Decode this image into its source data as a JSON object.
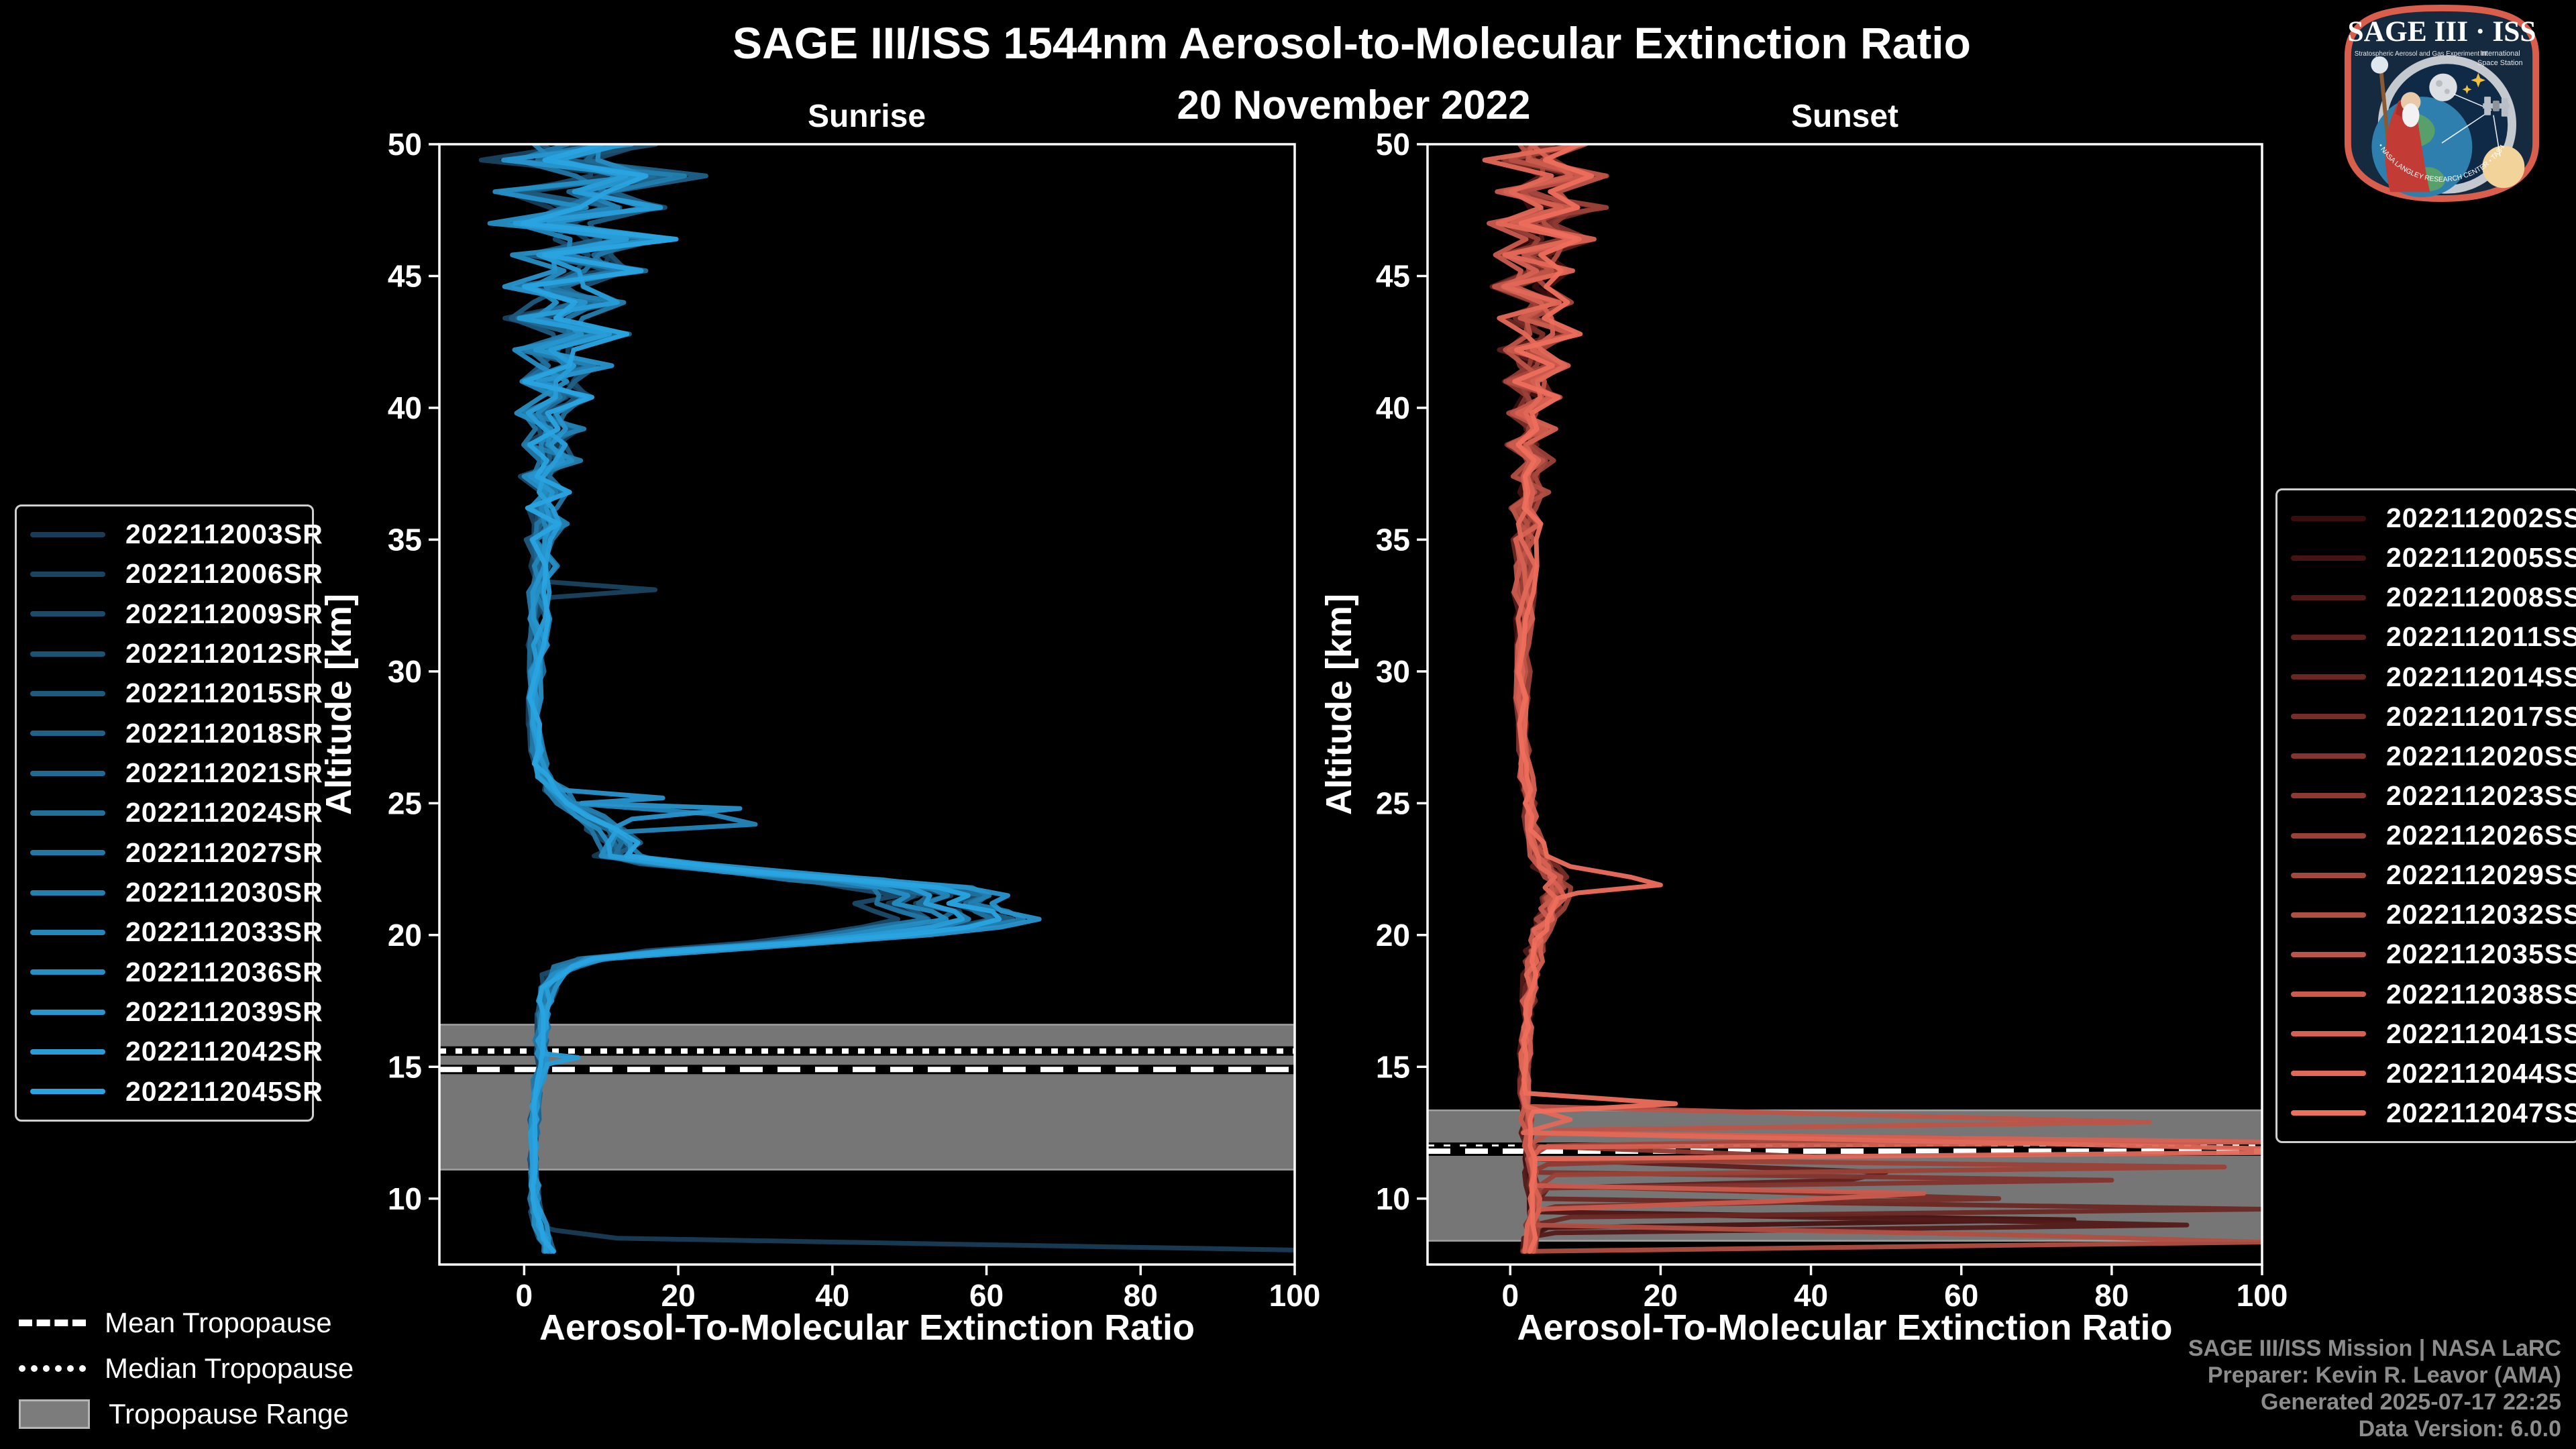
{
  "header": {
    "title": "SAGE III/ISS 1544nm Aerosol-to-Molecular Extinction Ratio",
    "subtitle": "20 November 2022"
  },
  "footer": {
    "color": "#8c8c8c",
    "lines": [
      "SAGE III/ISS Mission | NASA LaRC",
      "Preparer: Kevin R. Leavor (AMA)",
      "Generated 2025-07-17 22:25",
      "Data Version: 6.0.0"
    ]
  },
  "logo": {
    "title": "SAGE III · ISS",
    "program": "Stratospheric Aerosol and Gas Experiment III",
    "station_line1": "International",
    "station_line2": "Space Station",
    "arc_text": "BALL • NASA LANGLEY RESEARCH CENTER • TAS-I • ESA"
  },
  "tropopause_legend": {
    "items": [
      {
        "label": "Mean Tropopause",
        "style": "dashed"
      },
      {
        "label": "Median Tropopause",
        "style": "dotted"
      },
      {
        "label": "Tropopause Range",
        "style": "patch"
      }
    ]
  },
  "style": {
    "band_fill": "#767676",
    "band_edge": "#a0a0a0",
    "axis_color": "#ffffff",
    "tick_font_px": 46
  },
  "chart_data": [
    {
      "type": "line",
      "panel": "sunrise",
      "title": "Sunrise",
      "xlabel": "Aerosol-To-Molecular Extinction Ratio",
      "ylabel": "Altitude [km]",
      "xlim": [
        -11,
        100
      ],
      "ylim": [
        7.5,
        50
      ],
      "xticks": [
        0,
        20,
        40,
        60,
        80,
        100
      ],
      "yticks": [
        10,
        15,
        20,
        25,
        30,
        35,
        40,
        45,
        50
      ],
      "tropopause": {
        "mean_km": 14.9,
        "median_km": 15.6,
        "range_km": [
          11.1,
          16.6
        ]
      },
      "base_profile": [
        [
          50,
          10
        ],
        [
          49.4,
          2
        ],
        [
          48.8,
          16
        ],
        [
          48.2,
          4
        ],
        [
          47.6,
          12
        ],
        [
          47,
          3
        ],
        [
          46.4,
          14
        ],
        [
          45.8,
          5
        ],
        [
          45.2,
          10
        ],
        [
          44.6,
          2
        ],
        [
          44,
          8
        ],
        [
          43.4,
          3
        ],
        [
          42.8,
          9
        ],
        [
          42.2,
          2
        ],
        [
          41.6,
          7
        ],
        [
          41,
          3
        ],
        [
          40.4,
          6
        ],
        [
          39.8,
          2.5
        ],
        [
          39.2,
          5
        ],
        [
          38.6,
          3
        ],
        [
          38,
          4.5
        ],
        [
          37.4,
          2.5
        ],
        [
          36.8,
          4
        ],
        [
          36.2,
          2.5
        ],
        [
          35.6,
          3.5
        ],
        [
          35,
          2.5
        ],
        [
          34,
          3
        ],
        [
          33,
          2.5
        ],
        [
          32,
          2.2
        ],
        [
          31,
          2
        ],
        [
          30,
          1.8
        ],
        [
          29,
          1.6
        ],
        [
          28,
          1.5
        ],
        [
          27,
          1.6
        ],
        [
          26.5,
          2
        ],
        [
          26,
          3
        ],
        [
          25.5,
          4.5
        ],
        [
          25,
          6
        ],
        [
          24.5,
          9
        ],
        [
          24,
          12
        ],
        [
          23.5,
          14
        ],
        [
          23,
          13
        ],
        [
          22.7,
          20
        ],
        [
          22.4,
          32
        ],
        [
          22.1,
          45
        ],
        [
          21.8,
          55
        ],
        [
          21.5,
          60
        ],
        [
          21.2,
          57
        ],
        [
          20.9,
          61
        ],
        [
          20.6,
          63
        ],
        [
          20.3,
          58
        ],
        [
          20,
          50
        ],
        [
          19.7,
          38
        ],
        [
          19.4,
          22
        ],
        [
          19.1,
          10
        ],
        [
          18.8,
          6
        ],
        [
          18.5,
          4.5
        ],
        [
          18,
          3.5
        ],
        [
          17.5,
          3
        ],
        [
          17,
          2.8
        ],
        [
          16.5,
          2.6
        ],
        [
          16,
          2.4
        ],
        [
          15.5,
          2.2
        ],
        [
          15,
          2.5
        ],
        [
          14.5,
          2
        ],
        [
          14,
          1.8
        ],
        [
          13.5,
          1.6
        ],
        [
          13,
          1.5
        ],
        [
          12.5,
          1.4
        ],
        [
          12,
          1.4
        ],
        [
          11.5,
          1.3
        ],
        [
          11,
          1.3
        ],
        [
          10.5,
          1.4
        ],
        [
          10,
          1.5
        ],
        [
          9.5,
          1.8
        ],
        [
          9,
          2.2
        ],
        [
          8.5,
          2.8
        ],
        [
          8,
          3.5
        ]
      ],
      "noise_amp": [
        [
          50,
          8
        ],
        [
          46,
          7
        ],
        [
          43,
          5
        ],
        [
          40,
          3.5
        ],
        [
          37,
          2.5
        ],
        [
          34,
          1.8
        ],
        [
          31,
          1.2
        ],
        [
          28,
          0.8
        ],
        [
          25,
          1.2
        ],
        [
          23,
          2
        ],
        [
          21,
          2.2
        ],
        [
          19,
          1.5
        ],
        [
          17,
          0.8
        ],
        [
          14,
          0.5
        ],
        [
          11,
          0.5
        ],
        [
          8,
          0.8
        ]
      ],
      "series": [
        {
          "label": "2022112003SR",
          "color": "#193c56",
          "scale": 0.82,
          "seed": 1,
          "extras": [
            [
              8.8,
              4
            ],
            [
              8.5,
              12
            ],
            [
              8.25,
              60
            ],
            [
              8.05,
              100
            ]
          ]
        },
        {
          "label": "2022112006SR",
          "color": "#1a4360",
          "scale": 0.9,
          "seed": 2,
          "extras": [
            [
              33.4,
              3
            ],
            [
              33.1,
              17
            ],
            [
              32.8,
              3
            ]
          ]
        },
        {
          "label": "2022112009SR",
          "color": "#1b4b6a",
          "scale": 0.78,
          "seed": 3,
          "extras": []
        },
        {
          "label": "2022112012SR",
          "color": "#1c5274",
          "scale": 0.95,
          "seed": 4,
          "extras": []
        },
        {
          "label": "2022112015SR",
          "color": "#1e5a7e",
          "scale": 0.85,
          "seed": 5,
          "extras": []
        },
        {
          "label": "2022112018SR",
          "color": "#1f6188",
          "scale": 1.0,
          "seed": 6,
          "extras": []
        },
        {
          "label": "2022112021SR",
          "color": "#206992",
          "scale": 0.88,
          "seed": 7,
          "extras": []
        },
        {
          "label": "2022112024SR",
          "color": "#21709c",
          "scale": 0.97,
          "seed": 8,
          "extras": []
        },
        {
          "label": "2022112027SR",
          "color": "#2277a6",
          "scale": 0.8,
          "seed": 9,
          "extras": []
        },
        {
          "label": "2022112030SR",
          "color": "#237fb0",
          "scale": 1.02,
          "seed": 10,
          "extras": []
        },
        {
          "label": "2022112033SR",
          "color": "#2486ba",
          "scale": 0.92,
          "seed": 11,
          "extras": [
            [
              24.6,
              24
            ],
            [
              24.2,
              30
            ],
            [
              23.9,
              12
            ]
          ]
        },
        {
          "label": "2022112036SR",
          "color": "#258ec4",
          "scale": 0.86,
          "seed": 12,
          "extras": []
        },
        {
          "label": "2022112039SR",
          "color": "#2795ce",
          "scale": 1.05,
          "seed": 13,
          "extras": [
            [
              25.2,
              18
            ],
            [
              24.8,
              28
            ],
            [
              24.4,
              14
            ]
          ]
        },
        {
          "label": "2022112042SR",
          "color": "#289dd8",
          "scale": 0.9,
          "seed": 14,
          "extras": [
            [
              15.35,
              7
            ],
            [
              15.1,
              3
            ]
          ]
        },
        {
          "label": "2022112045SR",
          "color": "#29a4e2",
          "scale": 0.98,
          "seed": 15,
          "extras": []
        }
      ]
    },
    {
      "type": "line",
      "panel": "sunset",
      "title": "Sunset",
      "xlabel": "Aerosol-To-Molecular Extinction Ratio",
      "ylabel": "Altitude [km]",
      "xlim": [
        -11,
        100
      ],
      "ylim": [
        7.5,
        50
      ],
      "xticks": [
        0,
        20,
        40,
        60,
        80,
        100
      ],
      "yticks": [
        10,
        15,
        20,
        25,
        30,
        35,
        40,
        45,
        50
      ],
      "tropopause": {
        "mean_km": 11.8,
        "median_km": 11.95,
        "range_km": [
          8.4,
          13.35
        ]
      },
      "base_profile": [
        [
          50,
          6
        ],
        [
          49.4,
          1.5
        ],
        [
          48.8,
          9
        ],
        [
          48.2,
          2
        ],
        [
          47.6,
          8
        ],
        [
          47,
          2
        ],
        [
          46.4,
          7
        ],
        [
          45.8,
          2.5
        ],
        [
          45.2,
          6
        ],
        [
          44.6,
          1.5
        ],
        [
          44,
          5
        ],
        [
          43.4,
          2
        ],
        [
          42.8,
          6
        ],
        [
          42.2,
          1.5
        ],
        [
          41.6,
          5
        ],
        [
          41,
          2
        ],
        [
          40.4,
          4.5
        ],
        [
          39.8,
          1.8
        ],
        [
          39.2,
          4
        ],
        [
          38.6,
          2
        ],
        [
          38,
          3.5
        ],
        [
          37.4,
          1.8
        ],
        [
          36.8,
          3.2
        ],
        [
          36.2,
          1.8
        ],
        [
          35.6,
          3
        ],
        [
          35,
          2
        ],
        [
          34,
          2.2
        ],
        [
          33,
          2
        ],
        [
          32,
          1.9
        ],
        [
          31,
          1.8
        ],
        [
          30,
          1.8
        ],
        [
          29,
          1.7
        ],
        [
          28,
          1.7
        ],
        [
          27,
          1.8
        ],
        [
          26.5,
          2
        ],
        [
          26,
          2.2
        ],
        [
          25.5,
          2.4
        ],
        [
          25,
          2.6
        ],
        [
          24.5,
          2.8
        ],
        [
          24,
          3
        ],
        [
          23.5,
          3.5
        ],
        [
          23,
          4.2
        ],
        [
          22.6,
          5
        ],
        [
          22.2,
          6
        ],
        [
          21.8,
          6.5
        ],
        [
          21.4,
          6
        ],
        [
          21,
          5.5
        ],
        [
          20.6,
          5
        ],
        [
          20.2,
          4.5
        ],
        [
          19.8,
          4
        ],
        [
          19.4,
          3.6
        ],
        [
          19,
          3.3
        ],
        [
          18.5,
          3
        ],
        [
          18,
          2.8
        ],
        [
          17.5,
          2.6
        ],
        [
          17,
          2.4
        ],
        [
          16.5,
          2.3
        ],
        [
          16,
          2.2
        ],
        [
          15.5,
          2.1
        ],
        [
          15,
          2
        ],
        [
          14.5,
          2
        ],
        [
          14,
          2
        ],
        [
          13.5,
          2.1
        ],
        [
          13,
          2.2
        ],
        [
          12.5,
          2.4
        ],
        [
          12,
          2.6
        ],
        [
          11.5,
          2.8
        ],
        [
          11,
          3
        ],
        [
          10.5,
          3.2
        ],
        [
          10,
          3.4
        ],
        [
          9.5,
          3.2
        ],
        [
          9,
          3
        ],
        [
          8.5,
          2.8
        ],
        [
          8,
          2.6
        ]
      ],
      "noise_amp": [
        [
          50,
          5
        ],
        [
          46,
          4.5
        ],
        [
          43,
          3.5
        ],
        [
          40,
          2.5
        ],
        [
          37,
          2
        ],
        [
          34,
          1.4
        ],
        [
          31,
          1
        ],
        [
          28,
          0.7
        ],
        [
          24,
          0.8
        ],
        [
          22,
          1.5
        ],
        [
          20,
          1
        ],
        [
          17,
          0.6
        ],
        [
          13,
          0.5
        ],
        [
          8,
          0.6
        ]
      ],
      "series": [
        {
          "label": "2022112002SS",
          "color": "#3a0d0d",
          "scale": 0.85,
          "seed": 21,
          "extras": []
        },
        {
          "label": "2022112005SS",
          "color": "#461312",
          "scale": 0.95,
          "seed": 22,
          "extras": [
            [
              9.2,
              75
            ],
            [
              8.9,
              5
            ]
          ]
        },
        {
          "label": "2022112008SS",
          "color": "#521a18",
          "scale": 0.8,
          "seed": 23,
          "extras": [
            [
              9.0,
              90
            ],
            [
              8.7,
              6
            ]
          ]
        },
        {
          "label": "2022112011SS",
          "color": "#5e201d",
          "scale": 1.0,
          "seed": 24,
          "extras": [
            [
              11.0,
              50
            ],
            [
              10.7,
              45
            ],
            [
              10.4,
              5
            ]
          ]
        },
        {
          "label": "2022112014SS",
          "color": "#6a2722",
          "scale": 0.9,
          "seed": 25,
          "extras": [
            [
              9.6,
              100
            ],
            [
              9.3,
              8
            ]
          ]
        },
        {
          "label": "2022112017SS",
          "color": "#762d27",
          "scale": 1.05,
          "seed": 26,
          "extras": [
            [
              10.0,
              65
            ],
            [
              9.7,
              6
            ]
          ]
        },
        {
          "label": "2022112020SS",
          "color": "#82342d",
          "scale": 0.85,
          "seed": 27,
          "extras": [
            [
              10.7,
              80
            ],
            [
              10.4,
              5
            ]
          ]
        },
        {
          "label": "2022112023SS",
          "color": "#8e3a32",
          "scale": 0.95,
          "seed": 28,
          "extras": [
            [
              11.6,
              40
            ],
            [
              11.3,
              5
            ]
          ]
        },
        {
          "label": "2022112026SS",
          "color": "#9a4137",
          "scale": 1.1,
          "seed": 29,
          "extras": [
            [
              11.2,
              95
            ],
            [
              10.9,
              6
            ]
          ]
        },
        {
          "label": "2022112029SS",
          "color": "#a6473d",
          "scale": 0.9,
          "seed": 30,
          "extras": [
            [
              12.3,
              60
            ],
            [
              12.0,
              5
            ]
          ]
        },
        {
          "label": "2022112032SS",
          "color": "#b24e42",
          "scale": 1.0,
          "seed": 31,
          "extras": [
            [
              8.6,
              70
            ],
            [
              8.35,
              100
            ]
          ]
        },
        {
          "label": "2022112035SS",
          "color": "#be5447",
          "scale": 0.95,
          "seed": 32,
          "extras": [
            [
              12.9,
              85
            ],
            [
              12.6,
              6
            ]
          ]
        },
        {
          "label": "2022112038SS",
          "color": "#ca5b4d",
          "scale": 0.85,
          "seed": 33,
          "extras": [
            [
              10.2,
              55
            ],
            [
              9.9,
              35
            ],
            [
              9.6,
              4
            ]
          ]
        },
        {
          "label": "2022112041SS",
          "color": "#d66152",
          "scale": 1.05,
          "seed": 34,
          "extras": [
            [
              12.15,
              100
            ],
            [
              11.95,
              4
            ]
          ]
        },
        {
          "label": "2022112044SS",
          "color": "#e26857",
          "scale": 0.9,
          "seed": 35,
          "extras": [
            [
              13.0,
              8
            ],
            [
              11.9,
              100
            ],
            [
              11.75,
              102
            ]
          ]
        },
        {
          "label": "2022112047SS",
          "color": "#ee6e5c",
          "scale": 1.0,
          "seed": 36,
          "extras": [
            [
              22.6,
              8
            ],
            [
              22.2,
              16
            ],
            [
              21.9,
              20
            ],
            [
              21.6,
              9
            ],
            [
              13.6,
              22
            ],
            [
              13.3,
              3
            ]
          ]
        }
      ]
    }
  ]
}
